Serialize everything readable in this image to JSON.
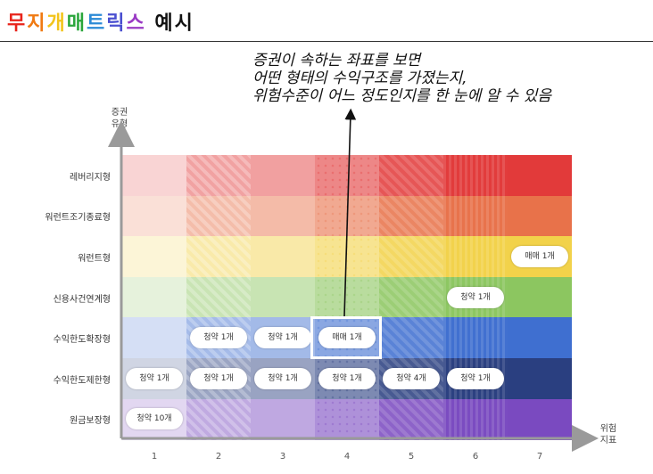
{
  "title": {
    "chars": [
      {
        "text": "무",
        "color": "#e8231a"
      },
      {
        "text": "지",
        "color": "#f07a12"
      },
      {
        "text": "개",
        "color": "#f2c41b"
      },
      {
        "text": "매",
        "color": "#2aa63b"
      },
      {
        "text": "트",
        "color": "#2b8ad6"
      },
      {
        "text": "릭",
        "color": "#4a4fd0"
      },
      {
        "text": "스",
        "color": "#9a3ac4"
      },
      {
        "text": " ",
        "color": "#000000"
      },
      {
        "text": "예",
        "color": "#111111"
      },
      {
        "text": "시",
        "color": "#111111"
      }
    ]
  },
  "annotation": {
    "lines": [
      "증권이 속하는 좌표를 보면",
      "어떤 형태의 수익구조를 가졌는지,",
      "위험수준이 어느 정도인지를 한 눈에 알 수 있음"
    ]
  },
  "axes": {
    "y_title_line1": "증권",
    "y_title_line2": "유형",
    "x_title_line1": "위험",
    "x_title_line2": "지표"
  },
  "chart_data": {
    "type": "heatmap",
    "rows": [
      "레버리지형",
      "워런트조기종료형",
      "워런트형",
      "신용사건연계형",
      "수익한도확장형",
      "수익한도제한형",
      "원금보장형"
    ],
    "columns": [
      "1",
      "2",
      "3",
      "4",
      "5",
      "6",
      "7"
    ],
    "row_colors": [
      "#e23a3a",
      "#e8724a",
      "#f2d24a",
      "#8cc660",
      "#3f6fd0",
      "#2a3f80",
      "#7a4ac0"
    ],
    "cells": [
      {
        "row": "워런트형",
        "col": "7",
        "label": "매매 1개"
      },
      {
        "row": "신용사건연계형",
        "col": "6",
        "label": "청약 1개"
      },
      {
        "row": "수익한도확장형",
        "col": "2",
        "label": "청약 1개"
      },
      {
        "row": "수익한도확장형",
        "col": "3",
        "label": "청약 1개"
      },
      {
        "row": "수익한도확장형",
        "col": "4",
        "label": "매매 1개"
      },
      {
        "row": "수익한도제한형",
        "col": "1",
        "label": "청약 1개"
      },
      {
        "row": "수익한도제한형",
        "col": "2",
        "label": "청약 1개"
      },
      {
        "row": "수익한도제한형",
        "col": "3",
        "label": "청약 1개"
      },
      {
        "row": "수익한도제한형",
        "col": "4",
        "label": "청약 1개"
      },
      {
        "row": "수익한도제한형",
        "col": "5",
        "label": "청약 4개"
      },
      {
        "row": "수익한도제한형",
        "col": "6",
        "label": "청약 1개"
      },
      {
        "row": "원금보장형",
        "col": "1",
        "label": "청약 10개"
      }
    ],
    "highlighted_cell": {
      "row": "수익한도확장형",
      "col": "4"
    }
  }
}
